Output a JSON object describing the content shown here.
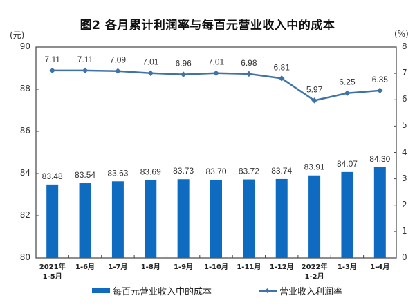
{
  "chart_data": {
    "type": "bar+line",
    "title": "图2 各月累计利润率与每百元营业收入中的成本",
    "categories": [
      "2021年\n1-5月",
      "1-6月",
      "1-7月",
      "1-8月",
      "1-9月",
      "1-10月",
      "1-11月",
      "1-12月",
      "2022年\n1-2月",
      "1-3月",
      "1-4月"
    ],
    "series": [
      {
        "name": "每百元营业收入中的成本",
        "type": "bar",
        "axis": "left",
        "unit": "元",
        "color": "#0e6bbf",
        "values": [
          83.48,
          83.54,
          83.63,
          83.69,
          83.73,
          83.7,
          83.72,
          83.74,
          83.91,
          84.07,
          84.3
        ]
      },
      {
        "name": "营业收入利润率",
        "type": "line",
        "axis": "right",
        "unit": "%",
        "color": "#3f72a8",
        "values": [
          7.11,
          7.11,
          7.09,
          7.01,
          6.96,
          7.01,
          6.98,
          6.81,
          5.97,
          6.25,
          6.35
        ]
      }
    ],
    "ylabel_left": "(元)",
    "ylabel_right": "(%)",
    "ylim_left": [
      80,
      90
    ],
    "yticks_left": [
      80,
      82,
      84,
      86,
      88,
      90
    ],
    "ylim_right": [
      0,
      8
    ],
    "yticks_right": [
      0,
      1,
      2,
      3,
      4,
      5,
      6,
      7,
      8
    ],
    "grid": false,
    "legend_position": "bottom"
  },
  "labels": {
    "title": "图2 各月累计利润率与每百元营业收入中的成本",
    "unit_left": "(元)",
    "unit_right": "(%)",
    "legend_bar": "每百元营业收入中的成本",
    "legend_line": "营业收入利润率",
    "x_lines": [
      [
        "2021年",
        "1-5月"
      ],
      [
        "1-6月"
      ],
      [
        "1-7月"
      ],
      [
        "1-8月"
      ],
      [
        "1-9月"
      ],
      [
        "1-10月"
      ],
      [
        "1-11月"
      ],
      [
        "1-12月"
      ],
      [
        "2022年",
        "1-2月"
      ],
      [
        "1-3月"
      ],
      [
        "1-4月"
      ]
    ],
    "bar_labels": [
      "83.48",
      "83.54",
      "83.63",
      "83.69",
      "83.73",
      "83.70",
      "83.72",
      "83.74",
      "83.91",
      "84.07",
      "84.30"
    ],
    "line_labels": [
      "7.11",
      "7.11",
      "7.09",
      "7.01",
      "6.96",
      "7.01",
      "6.98",
      "6.81",
      "5.97",
      "6.25",
      "6.35"
    ]
  }
}
